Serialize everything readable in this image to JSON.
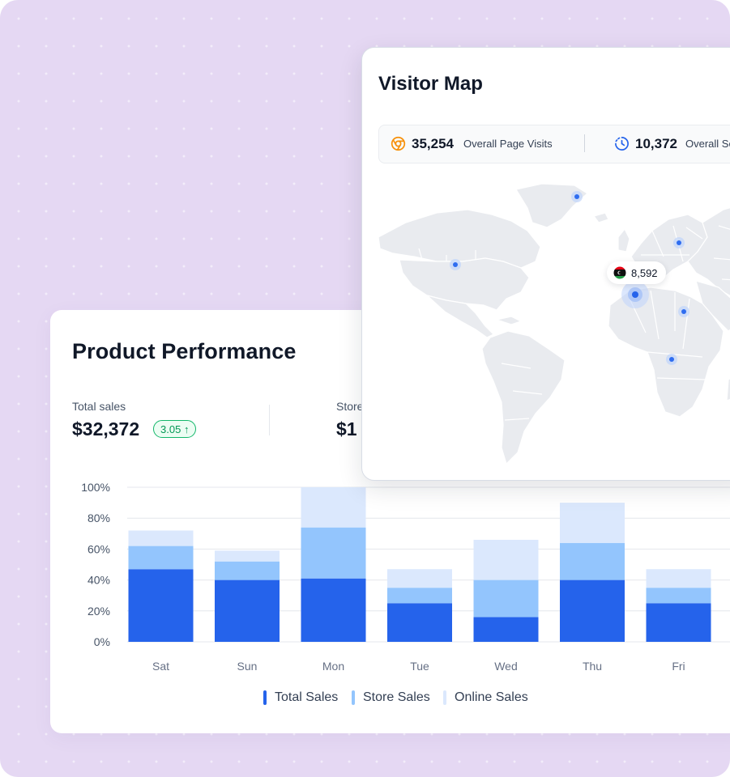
{
  "product_performance": {
    "title": "Product Performance",
    "stats": [
      {
        "label": "Total sales",
        "value": "$32,372",
        "badge": "3.05"
      },
      {
        "label": "Store",
        "value": "$1"
      }
    ]
  },
  "chart_data": {
    "type": "bar",
    "stacked": true,
    "categories": [
      "Sat",
      "Sun",
      "Mon",
      "Tue",
      "Wed",
      "Thu",
      "Fri"
    ],
    "series": [
      {
        "name": "Total Sales",
        "values": [
          47,
          40,
          41,
          25,
          16,
          40,
          25
        ],
        "color": "#2563eb"
      },
      {
        "name": "Store Sales",
        "values": [
          15,
          12,
          33,
          10,
          24,
          24,
          10
        ],
        "color": "#93c5fd"
      },
      {
        "name": "Online Sales",
        "values": [
          10,
          7,
          26,
          12,
          26,
          26,
          12
        ],
        "color": "#dbe8fd"
      }
    ],
    "yticks": [
      "0%",
      "20%",
      "40%",
      "60%",
      "80%",
      "100%"
    ],
    "ylim": [
      0,
      100
    ],
    "legend_position": "bottom"
  },
  "visitor_map": {
    "title": "Visitor Map",
    "stats": [
      {
        "value": "35,254",
        "label": "Overall Page Visits",
        "icon": "chrome-icon",
        "color": "#f79009"
      },
      {
        "value": "10,372",
        "label": "Overall Se",
        "icon": "clock-icon",
        "color": "#2563eb"
      }
    ],
    "tooltip": {
      "value": "8,592",
      "flag": "libya-flag-icon"
    }
  }
}
